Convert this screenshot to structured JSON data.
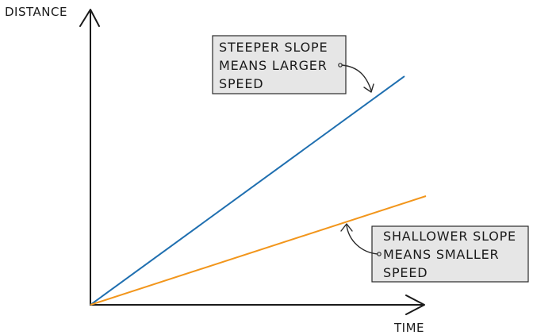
{
  "axes": {
    "y_label": "DISTANCE",
    "x_label": "TIME"
  },
  "lines": {
    "steep": {
      "color": "#1f6fb0"
    },
    "shallow": {
      "color": "#f2961c"
    }
  },
  "annotations": {
    "steep": {
      "lines": [
        "STEEPER SLOPE",
        "MEANS LARGER",
        "SPEED"
      ]
    },
    "shallow": {
      "lines": [
        "SHALLOWER SLOPE",
        "MEANS SMALLER",
        "SPEED"
      ]
    }
  },
  "colors": {
    "axis": "#1a1a1a",
    "box_fill": "#e6e6e6",
    "box_stroke": "#2a2a2a"
  }
}
